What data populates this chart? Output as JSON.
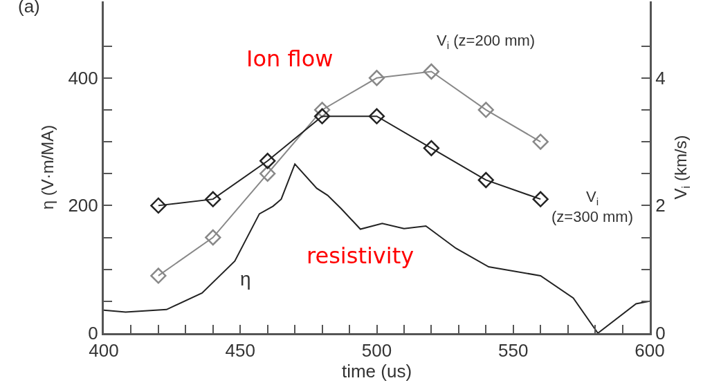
{
  "chart_data": {
    "type": "line",
    "xlabel": "time (us)",
    "ylabel": "η (V·m/MA)",
    "y2label": "V$_{i}$ (km/s)",
    "annotations": [
      "(a)",
      "Ion flow",
      "resistivity"
    ],
    "xlim": [
      400,
      600
    ],
    "xticks": [
      400,
      {
        "value": 410,
        "label": null
      },
      {
        "value": 420,
        "label": null
      },
      {
        "value": 430,
        "label": null
      },
      {
        "value": 440,
        "label": null
      },
      450,
      {
        "value": 460,
        "label": null
      },
      {
        "value": 470,
        "label": null
      },
      {
        "value": 480,
        "label": null
      },
      {
        "value": 490,
        "label": null
      },
      500,
      {
        "value": 510,
        "label": null
      },
      {
        "value": 520,
        "label": null
      },
      {
        "value": 530,
        "label": null
      },
      {
        "value": 540,
        "label": null
      },
      550,
      {
        "value": 560,
        "label": null
      },
      {
        "value": 570,
        "label": null
      },
      {
        "value": 580,
        "label": null
      },
      {
        "value": 590,
        "label": null
      },
      600
    ],
    "ylim": [
      0,
      520
    ],
    "yticks": [
      0,
      {
        "value": 50,
        "label": null
      },
      {
        "value": 100,
        "label": null
      },
      {
        "value": 150,
        "label": null
      },
      200,
      {
        "value": 250,
        "label": null
      },
      {
        "value": 300,
        "label": null
      },
      {
        "value": 350,
        "label": null
      },
      400,
      {
        "value": 450,
        "label": null
      }
    ],
    "y2lim": [
      0,
      5.2
    ],
    "y2ticks": [
      0,
      {
        "value": 0.5,
        "label": null
      },
      {
        "value": 1,
        "label": null
      },
      {
        "value": 1.5,
        "label": null
      },
      2,
      {
        "value": 2.5,
        "label": null
      },
      {
        "value": 3,
        "label": null
      },
      {
        "value": 3.5,
        "label": null
      },
      4,
      {
        "value": 4.5,
        "label": null
      }
    ],
    "legend": false,
    "series": [
      {
        "name": "η",
        "color": "#222222",
        "marker": "none",
        "x": [
          400,
          408,
          423,
          436,
          448,
          457,
          462,
          465,
          470,
          478,
          482,
          487,
          494,
          502,
          510,
          518,
          529,
          541,
          560,
          572,
          581,
          595,
          600
        ],
        "values": [
          36,
          33,
          37,
          63,
          113,
          187,
          199,
          210,
          265,
          227,
          216,
          195,
          163,
          172,
          164,
          168,
          133,
          104,
          90,
          55,
          0,
          46,
          50
        ]
      },
      {
        "name": "V$_{i}$ (z=200 mm)",
        "color": "#888888",
        "marker": "diamond",
        "axis": "y2",
        "x": [
          420,
          440,
          460,
          480,
          500,
          520,
          540,
          560
        ],
        "values": [
          0.9,
          1.5,
          2.5,
          3.5,
          4.0,
          4.1,
          3.5,
          3.0
        ]
      },
      {
        "name": "V$_{i}$\n(z=300 mm)",
        "color": "#222222",
        "marker": "diamond",
        "axis": "y2",
        "x": [
          420,
          440,
          460,
          480,
          500,
          520,
          540,
          560
        ],
        "values": [
          2.0,
          2.1,
          2.7,
          3.4,
          3.4,
          2.9,
          2.4,
          2.1
        ]
      }
    ]
  }
}
